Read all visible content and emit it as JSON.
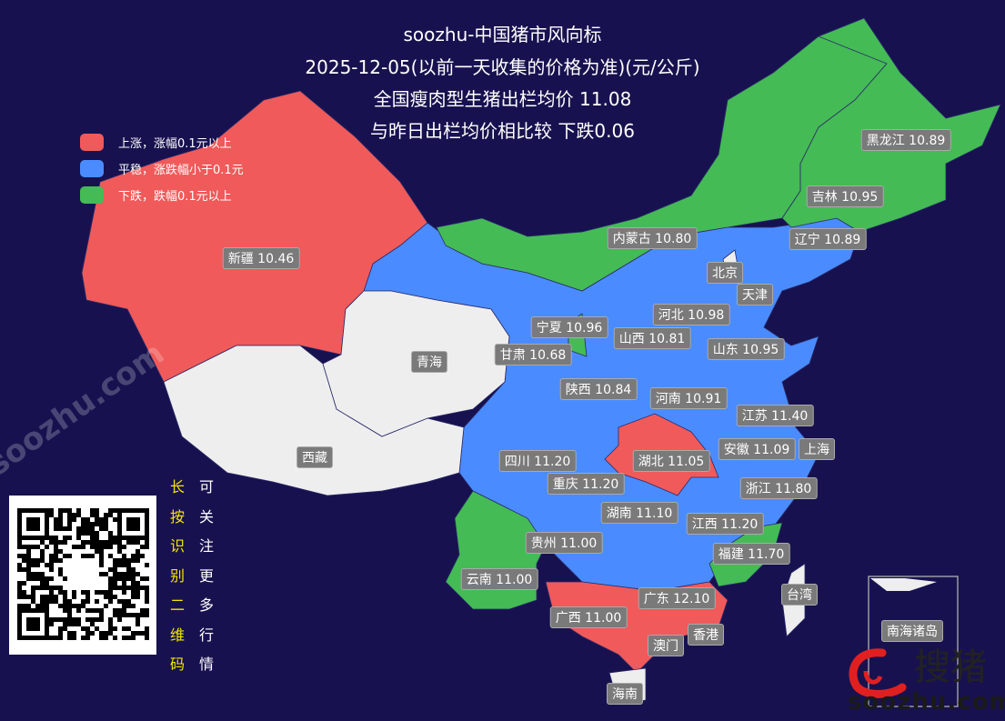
{
  "title": {
    "line1": "soozhu-中国猪市风向标",
    "line2": "2025-12-05(以前一天收集的价格为准)(元/公斤)",
    "line3": "全国瘦肉型生猪出栏均价 11.08",
    "line4": "与昨日出栏均价相比较 下跌0.06"
  },
  "colors": {
    "background": "#17124f",
    "up": "#f05a5a",
    "stable": "#4a8cff",
    "down": "#44bb55",
    "no_data": "#eeeeee"
  },
  "legend": [
    {
      "label": "上涨，涨幅0.1元以上",
      "status": "up"
    },
    {
      "label": "平稳，涨跌幅小于0.1元",
      "status": "stable"
    },
    {
      "label": "下跌，跌幅0.1元以上",
      "status": "down"
    }
  ],
  "provinces": [
    {
      "name": "黑龙江",
      "price": "10.89",
      "status": "down"
    },
    {
      "name": "吉林",
      "price": "10.95",
      "status": "down"
    },
    {
      "name": "辽宁",
      "price": "10.89",
      "status": "stable"
    },
    {
      "name": "内蒙古",
      "price": "10.80",
      "status": "down"
    },
    {
      "name": "新疆",
      "price": "10.46",
      "status": "up"
    },
    {
      "name": "北京",
      "price": "",
      "status": "stable"
    },
    {
      "name": "天津",
      "price": "",
      "status": "stable"
    },
    {
      "name": "河北",
      "price": "10.98",
      "status": "stable"
    },
    {
      "name": "宁夏",
      "price": "10.96",
      "status": "down"
    },
    {
      "name": "山西",
      "price": "10.81",
      "status": "stable"
    },
    {
      "name": "山东",
      "price": "10.95",
      "status": "stable"
    },
    {
      "name": "甘肃",
      "price": "10.68",
      "status": "stable"
    },
    {
      "name": "青海",
      "price": "",
      "status": "no_data"
    },
    {
      "name": "陕西",
      "price": "10.84",
      "status": "stable"
    },
    {
      "name": "河南",
      "price": "10.91",
      "status": "stable"
    },
    {
      "name": "江苏",
      "price": "11.40",
      "status": "stable"
    },
    {
      "name": "西藏",
      "price": "",
      "status": "no_data"
    },
    {
      "name": "安徽",
      "price": "11.09",
      "status": "stable"
    },
    {
      "name": "上海",
      "price": "",
      "status": "stable"
    },
    {
      "name": "四川",
      "price": "11.20",
      "status": "stable"
    },
    {
      "name": "湖北",
      "price": "11.05",
      "status": "up"
    },
    {
      "name": "重庆",
      "price": "11.20",
      "status": "stable"
    },
    {
      "name": "浙江",
      "price": "11.80",
      "status": "stable"
    },
    {
      "name": "湖南",
      "price": "11.10",
      "status": "stable"
    },
    {
      "name": "江西",
      "price": "11.20",
      "status": "stable"
    },
    {
      "name": "贵州",
      "price": "11.00",
      "status": "stable"
    },
    {
      "name": "福建",
      "price": "11.70",
      "status": "down"
    },
    {
      "name": "云南",
      "price": "11.00",
      "status": "down"
    },
    {
      "name": "台湾",
      "price": "",
      "status": "no_data"
    },
    {
      "name": "广东",
      "price": "12.10",
      "status": "up"
    },
    {
      "name": "广西",
      "price": "11.00",
      "status": "up"
    },
    {
      "name": "香港",
      "price": "",
      "status": "no_data"
    },
    {
      "name": "澳门",
      "price": "",
      "status": "no_data"
    },
    {
      "name": "海南",
      "price": "",
      "status": "no_data"
    },
    {
      "name": "南海诸岛",
      "price": "",
      "status": "no_data"
    }
  ],
  "qr": {
    "left_text": [
      "长",
      "按",
      "识",
      "别",
      "二",
      "维",
      "码"
    ],
    "right_text": [
      "可",
      "关",
      "注",
      "更",
      "多",
      "行",
      "情"
    ]
  },
  "watermark": "soozhu.com",
  "logo": {
    "cn": "搜猪",
    "en": "soozhu.com"
  }
}
